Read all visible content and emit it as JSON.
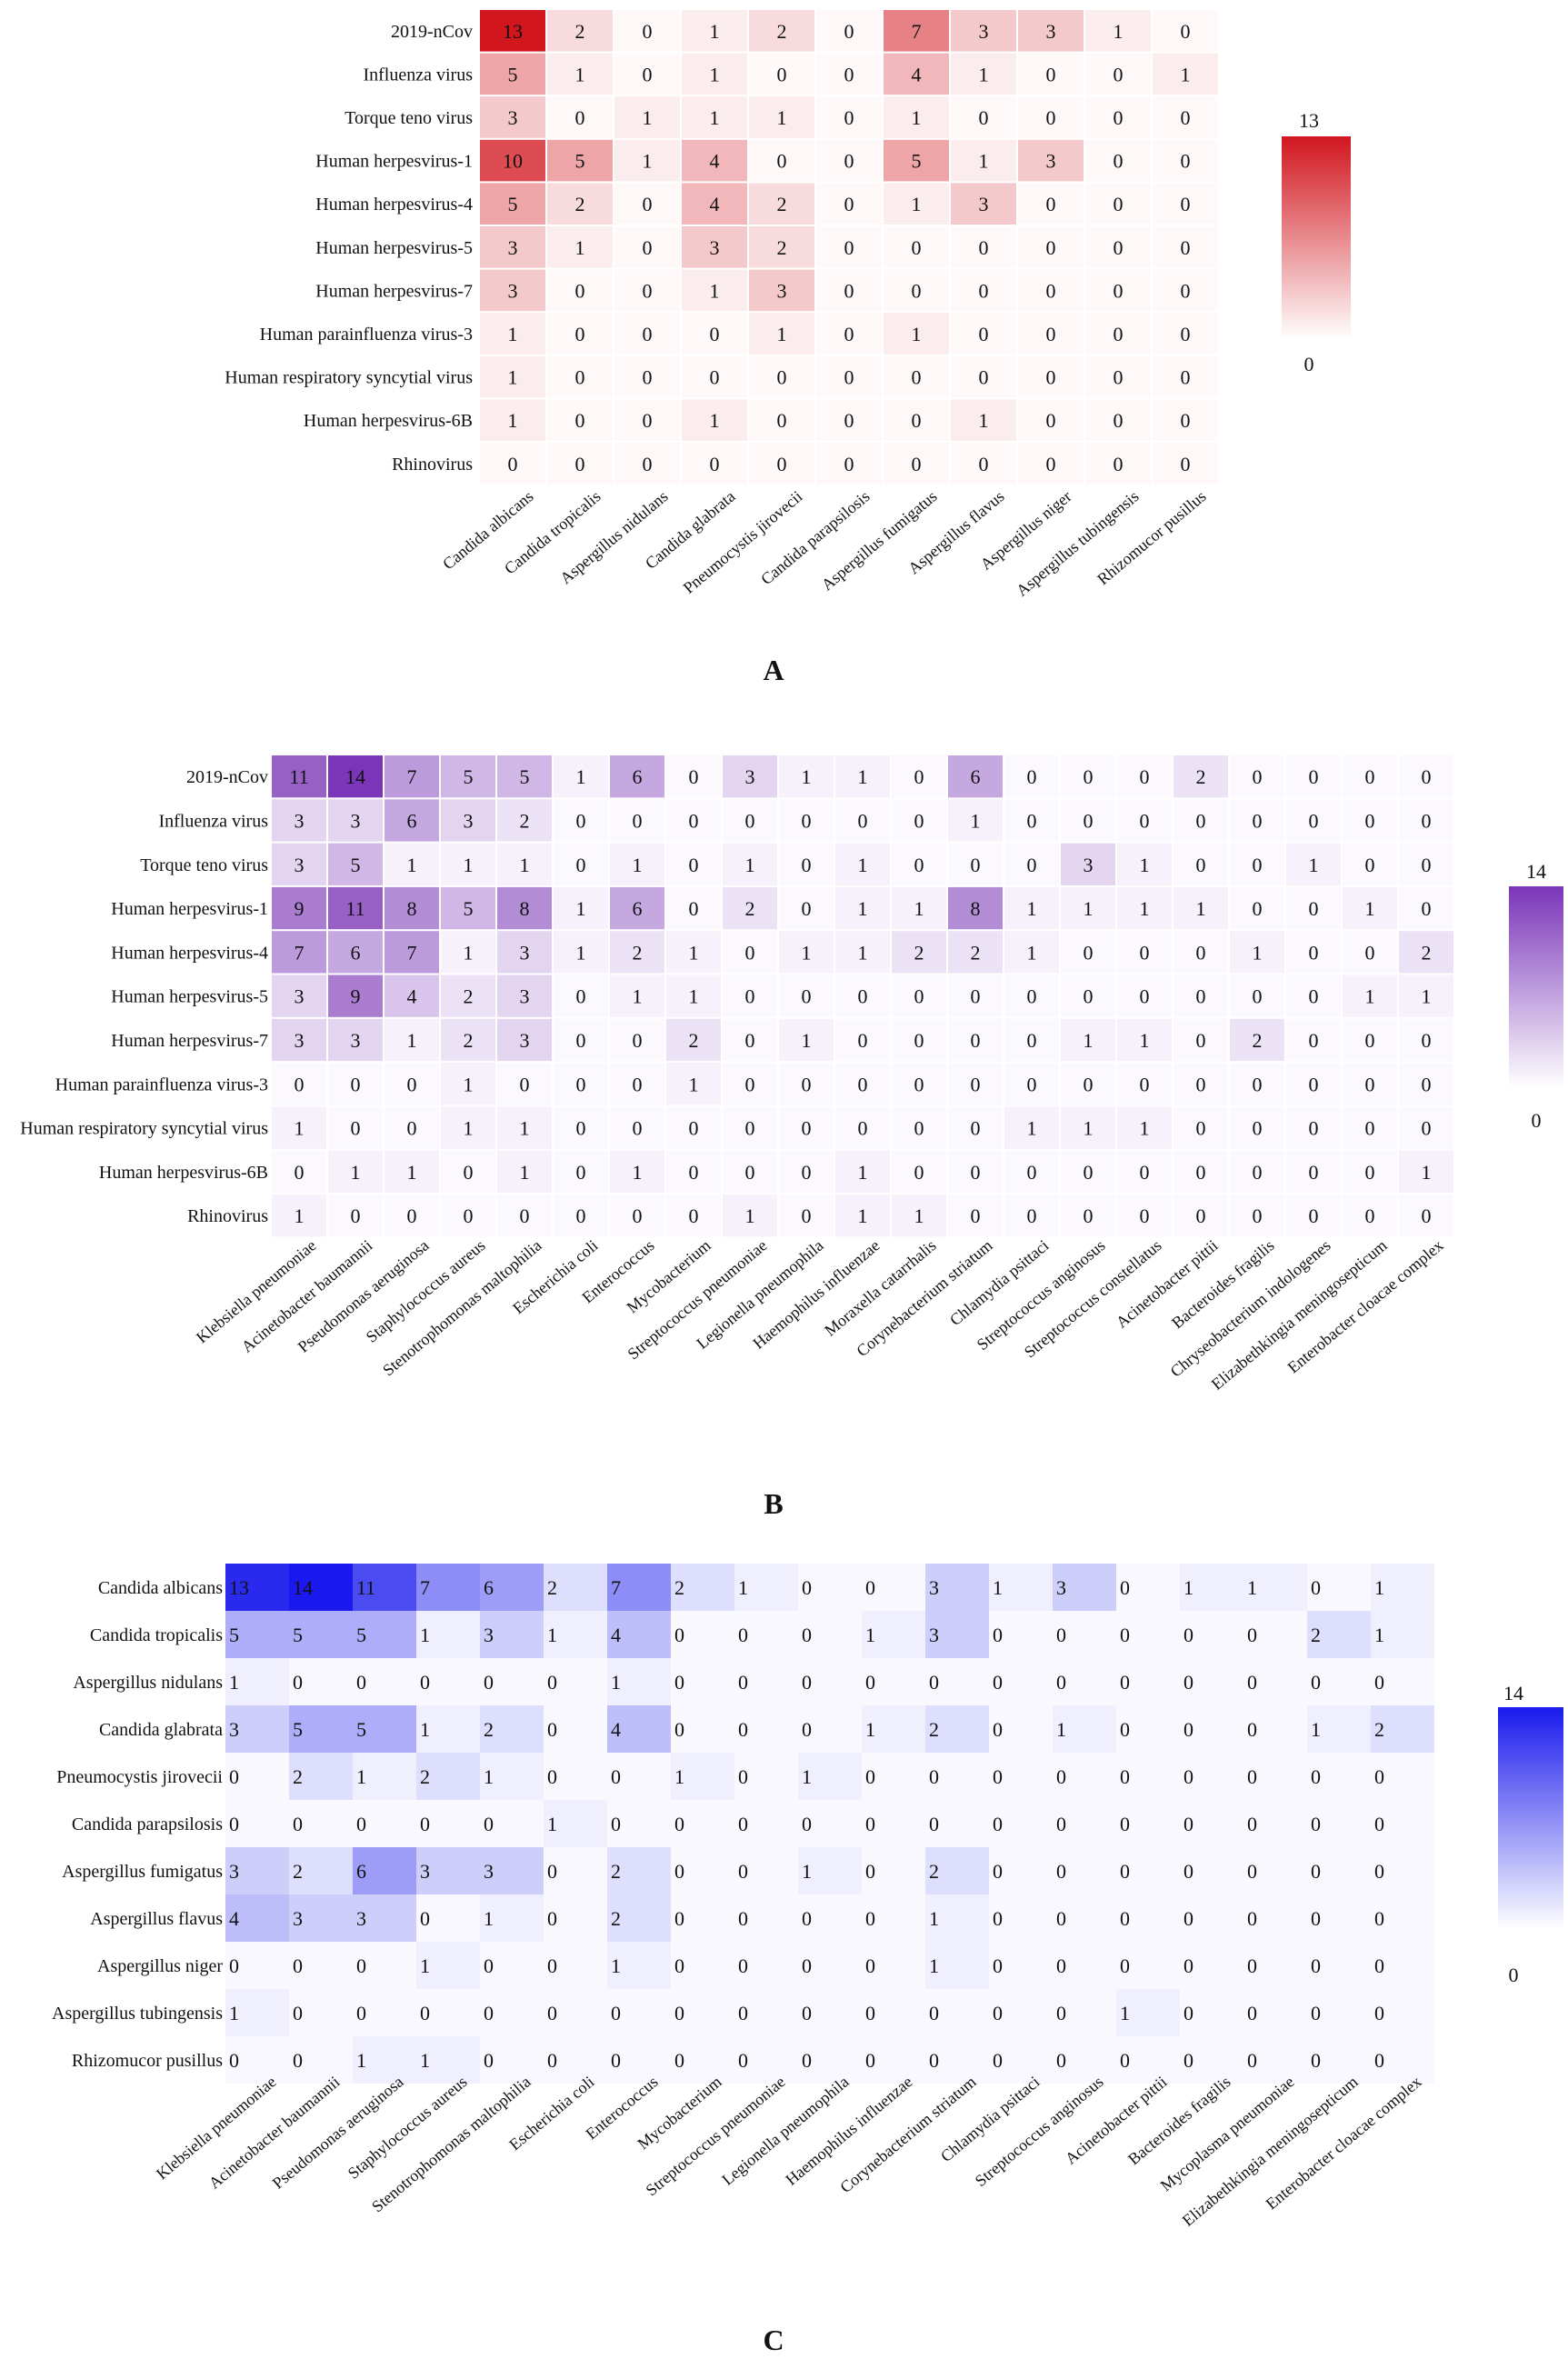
{
  "chart_data": [
    {
      "type": "heatmap",
      "panel_label": "A",
      "color": "#d1161e",
      "scale": [
        0,
        13
      ],
      "rows": [
        "2019-nCov",
        "Influenza virus",
        "Torque teno virus",
        "Human herpesvirus-1",
        "Human herpesvirus-4",
        "Human herpesvirus-5",
        "Human herpesvirus-7",
        "Human parainfluenza virus-3",
        "Human respiratory syncytial virus",
        "Human herpesvirus-6B",
        "Rhinovirus"
      ],
      "columns": [
        "Candida albicans",
        "Candida tropicalis",
        "Aspergillus nidulans",
        "Candida glabrata",
        "Pneumocystis jirovecii",
        "Candida parapsilosis",
        "Aspergillus fumigatus",
        "Aspergillus flavus",
        "Aspergillus niger",
        "Aspergillus tubingensis",
        "Rhizomucor pusillus"
      ],
      "values": [
        [
          13,
          2,
          0,
          1,
          2,
          0,
          7,
          3,
          3,
          1,
          0
        ],
        [
          5,
          1,
          0,
          1,
          0,
          0,
          4,
          1,
          0,
          0,
          1
        ],
        [
          3,
          0,
          1,
          1,
          1,
          0,
          1,
          0,
          0,
          0,
          0
        ],
        [
          10,
          5,
          1,
          4,
          0,
          0,
          5,
          1,
          3,
          0,
          0
        ],
        [
          5,
          2,
          0,
          4,
          2,
          0,
          1,
          3,
          0,
          0,
          0
        ],
        [
          3,
          1,
          0,
          3,
          2,
          0,
          0,
          0,
          0,
          0,
          0
        ],
        [
          3,
          0,
          0,
          1,
          3,
          0,
          0,
          0,
          0,
          0,
          0
        ],
        [
          1,
          0,
          0,
          0,
          1,
          0,
          1,
          0,
          0,
          0,
          0
        ],
        [
          1,
          0,
          0,
          0,
          0,
          0,
          0,
          0,
          0,
          0,
          0
        ],
        [
          1,
          0,
          0,
          1,
          0,
          0,
          0,
          1,
          0,
          0,
          0
        ],
        [
          0,
          0,
          0,
          0,
          0,
          0,
          0,
          0,
          0,
          0,
          0
        ]
      ],
      "legend": {
        "max_label": "13",
        "min_label": "0"
      }
    },
    {
      "type": "heatmap",
      "panel_label": "B",
      "color": "#7a35b8",
      "scale": [
        0,
        14
      ],
      "rows": [
        "2019-nCov",
        "Influenza virus",
        "Torque teno virus",
        "Human herpesvirus-1",
        "Human herpesvirus-4",
        "Human herpesvirus-5",
        "Human herpesvirus-7",
        "Human parainfluenza virus-3",
        "Human respiratory syncytial virus",
        "Human herpesvirus-6B",
        "Rhinovirus"
      ],
      "columns": [
        "Klebsiella pneumoniae",
        "Acinetobacter baumannii",
        "Pseudomonas aeruginosa",
        "Staphylococcus aureus",
        "Stenotrophomonas maltophilia",
        "Escherichia coli",
        "Enterococcus",
        "Mycobacterium",
        "Streptococcus pneumoniae",
        "Legionella pneumophila",
        "Haemophilus influenzae",
        "Moraxella catarrhalis",
        "Corynebacterium striatum",
        "Chlamydia psittaci",
        "Streptococcus anginosus",
        "Streptococcus constellatus",
        "Acinetobacter pittii",
        "Bacteroides fragilis",
        "Chryseobacterium indologenes",
        "Elizabethkingia meningosepticum",
        "Enterobacter cloacae complex"
      ],
      "values": [
        [
          11,
          14,
          7,
          5,
          5,
          1,
          6,
          0,
          3,
          1,
          1,
          0,
          6,
          0,
          0,
          0,
          2,
          0,
          0,
          0,
          0
        ],
        [
          3,
          3,
          6,
          3,
          2,
          0,
          0,
          0,
          0,
          0,
          0,
          0,
          1,
          0,
          0,
          0,
          0,
          0,
          0,
          0,
          0
        ],
        [
          3,
          5,
          1,
          1,
          1,
          0,
          1,
          0,
          1,
          0,
          1,
          0,
          0,
          0,
          3,
          1,
          0,
          0,
          1,
          0,
          0
        ],
        [
          9,
          11,
          8,
          5,
          8,
          1,
          6,
          0,
          2,
          0,
          1,
          1,
          8,
          1,
          1,
          1,
          1,
          0,
          0,
          1,
          0
        ],
        [
          7,
          6,
          7,
          1,
          3,
          1,
          2,
          1,
          0,
          1,
          1,
          2,
          2,
          1,
          0,
          0,
          0,
          1,
          0,
          0,
          2
        ],
        [
          3,
          9,
          4,
          2,
          3,
          0,
          1,
          1,
          0,
          0,
          0,
          0,
          0,
          0,
          0,
          0,
          0,
          0,
          0,
          1,
          1
        ],
        [
          3,
          3,
          1,
          2,
          3,
          0,
          0,
          2,
          0,
          1,
          0,
          0,
          0,
          0,
          1,
          1,
          0,
          2,
          0,
          0,
          0
        ],
        [
          0,
          0,
          0,
          1,
          0,
          0,
          0,
          1,
          0,
          0,
          0,
          0,
          0,
          0,
          0,
          0,
          0,
          0,
          0,
          0,
          0
        ],
        [
          1,
          0,
          0,
          1,
          1,
          0,
          0,
          0,
          0,
          0,
          0,
          0,
          0,
          1,
          1,
          1,
          0,
          0,
          0,
          0,
          0
        ],
        [
          0,
          1,
          1,
          0,
          1,
          0,
          1,
          0,
          0,
          0,
          1,
          0,
          0,
          0,
          0,
          0,
          0,
          0,
          0,
          0,
          1
        ],
        [
          1,
          0,
          0,
          0,
          0,
          0,
          0,
          0,
          1,
          0,
          1,
          1,
          0,
          0,
          0,
          0,
          0,
          0,
          0,
          0,
          0
        ]
      ],
      "legend": {
        "max_label": "14",
        "min_label": "0"
      }
    },
    {
      "type": "heatmap",
      "panel_label": "C",
      "color": "#1a1aee",
      "scale": [
        0,
        14
      ],
      "rows": [
        "Candida albicans",
        "Candida tropicalis",
        "Aspergillus nidulans",
        "Candida glabrata",
        "Pneumocystis jirovecii",
        "Candida parapsilosis",
        "Aspergillus fumigatus",
        "Aspergillus flavus",
        "Aspergillus niger",
        "Aspergillus tubingensis",
        "Rhizomucor pusillus"
      ],
      "columns": [
        "Klebsiella pneumoniae",
        "Acinetobacter baumannii",
        "Pseudomonas aeruginosa",
        "Staphylococcus aureus",
        "Stenotrophomonas maltophilia",
        "Escherichia coli",
        "Enterococcus",
        "Mycobacterium",
        "Streptococcus pneumoniae",
        "Legionella pneumophila",
        "Haemophilus influenzae",
        "Corynebacterium striatum",
        "Chlamydia psittaci",
        "Streptococcus anginosus",
        "Acinetobacter pittii",
        "Bacteroides fragilis",
        "Mycoplasma pneumoniae",
        "Elizabethkingia meningosepticum",
        "Enterobacter cloacae complex"
      ],
      "values": [
        [
          13,
          14,
          11,
          7,
          6,
          2,
          7,
          2,
          1,
          0,
          0,
          3,
          1,
          3,
          0,
          1,
          1,
          0,
          1
        ],
        [
          5,
          5,
          5,
          1,
          3,
          1,
          4,
          0,
          0,
          0,
          1,
          3,
          0,
          0,
          0,
          0,
          0,
          2,
          1
        ],
        [
          1,
          0,
          0,
          0,
          0,
          0,
          1,
          0,
          0,
          0,
          0,
          0,
          0,
          0,
          0,
          0,
          0,
          0,
          0
        ],
        [
          3,
          5,
          5,
          1,
          2,
          0,
          4,
          0,
          0,
          0,
          1,
          2,
          0,
          1,
          0,
          0,
          0,
          1,
          2
        ],
        [
          0,
          2,
          1,
          2,
          1,
          0,
          0,
          1,
          0,
          1,
          0,
          0,
          0,
          0,
          0,
          0,
          0,
          0,
          0
        ],
        [
          0,
          0,
          0,
          0,
          0,
          1,
          0,
          0,
          0,
          0,
          0,
          0,
          0,
          0,
          0,
          0,
          0,
          0,
          0
        ],
        [
          3,
          2,
          6,
          3,
          3,
          0,
          2,
          0,
          0,
          1,
          0,
          2,
          0,
          0,
          0,
          0,
          0,
          0,
          0
        ],
        [
          4,
          3,
          3,
          0,
          1,
          0,
          2,
          0,
          0,
          0,
          0,
          1,
          0,
          0,
          0,
          0,
          0,
          0,
          0
        ],
        [
          0,
          0,
          0,
          1,
          0,
          0,
          1,
          0,
          0,
          0,
          0,
          1,
          0,
          0,
          0,
          0,
          0,
          0,
          0
        ],
        [
          1,
          0,
          0,
          0,
          0,
          0,
          0,
          0,
          0,
          0,
          0,
          0,
          0,
          0,
          1,
          0,
          0,
          0,
          0
        ],
        [
          0,
          0,
          1,
          1,
          0,
          0,
          0,
          0,
          0,
          0,
          0,
          0,
          0,
          0,
          0,
          0,
          0,
          0,
          0
        ]
      ],
      "legend": {
        "max_label": "14",
        "min_label": "0"
      }
    }
  ]
}
